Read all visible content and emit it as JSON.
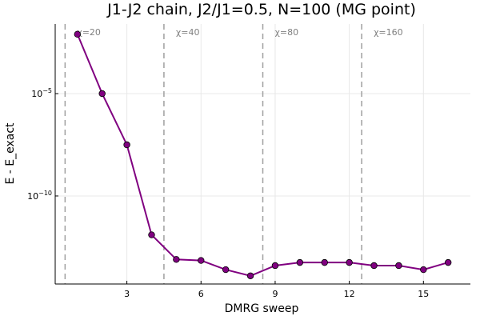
{
  "chart_data": {
    "type": "line",
    "title": "J1-J2 chain, J2/J1=0.5, N=100 (MG point)",
    "xlabel": "DMRG sweep",
    "ylabel": "E - E_exact",
    "xlim": [
      0.1,
      16.9
    ],
    "ylim_log10": [
      -14.3,
      -1.6
    ],
    "yscale": "log",
    "xticks": [
      3,
      6,
      9,
      12,
      15
    ],
    "xtick_labels": [
      "3",
      "6",
      "9",
      "12",
      "15"
    ],
    "yticks_log10": [
      -5,
      -10
    ],
    "ytick_base": "10",
    "ytick_exponents": [
      "−5",
      "−10"
    ],
    "grid": true,
    "legend": "none",
    "color": "#800080",
    "series": [
      {
        "x": [
          1,
          2,
          3,
          4,
          5,
          6,
          7,
          8,
          9,
          10,
          11,
          12,
          13,
          14,
          15,
          16
        ],
        "log10_y": [
          -2.1,
          -5.0,
          -7.5,
          -11.9,
          -13.1,
          -13.15,
          -13.6,
          -13.9,
          -13.4,
          -13.25,
          -13.25,
          -13.25,
          -13.4,
          -13.4,
          -13.6,
          -13.25
        ]
      }
    ],
    "vlines": [
      {
        "x": 0.5,
        "label": "χ=20"
      },
      {
        "x": 4.5,
        "label": "χ=40"
      },
      {
        "x": 8.5,
        "label": "χ=80"
      },
      {
        "x": 12.5,
        "label": "χ=160"
      }
    ]
  }
}
